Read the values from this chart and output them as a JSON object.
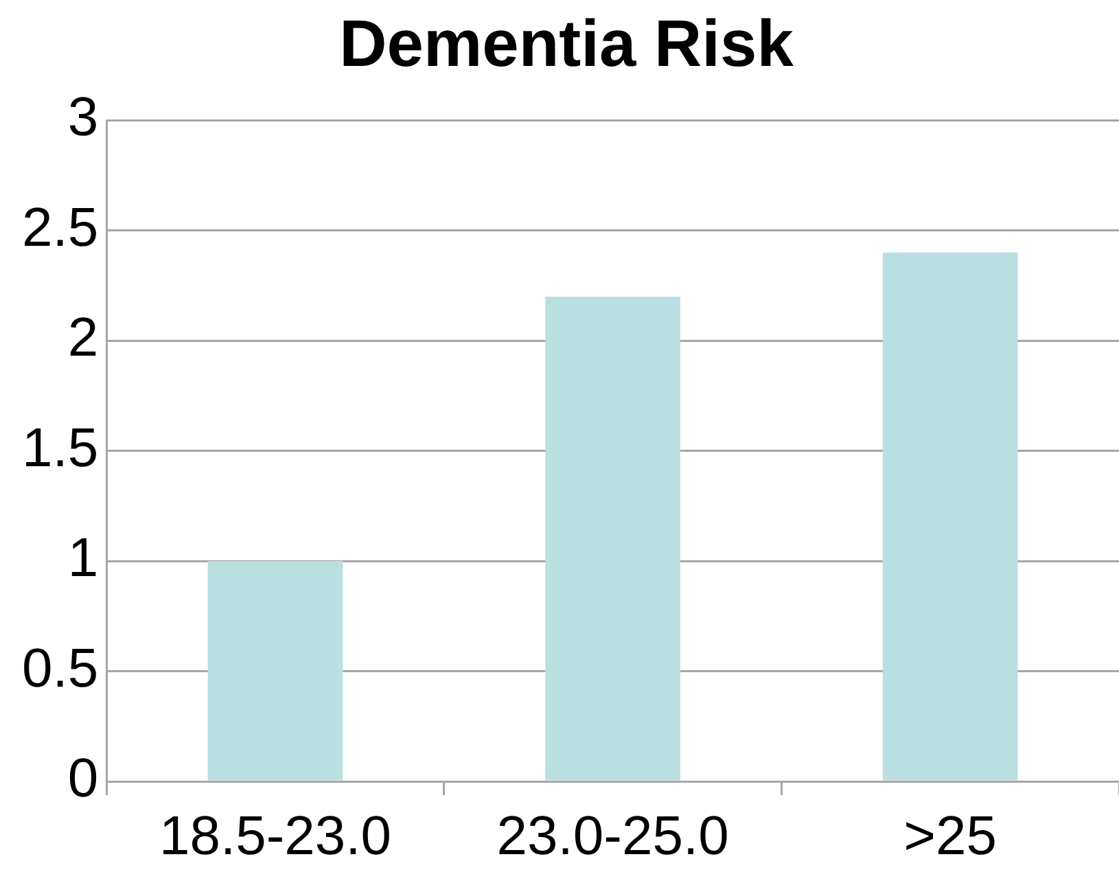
{
  "chart_data": {
    "type": "bar",
    "title": "Dementia Risk",
    "categories": [
      "18.5-23.0",
      "23.0-25.0",
      ">25"
    ],
    "values": [
      1,
      2.2,
      2.4
    ],
    "color": "#b9dfe1",
    "ylim": [
      0,
      3
    ],
    "yticks": [
      0,
      0.5,
      1,
      1.5,
      2,
      2.5,
      3
    ],
    "grid": "y",
    "legend": false
  }
}
